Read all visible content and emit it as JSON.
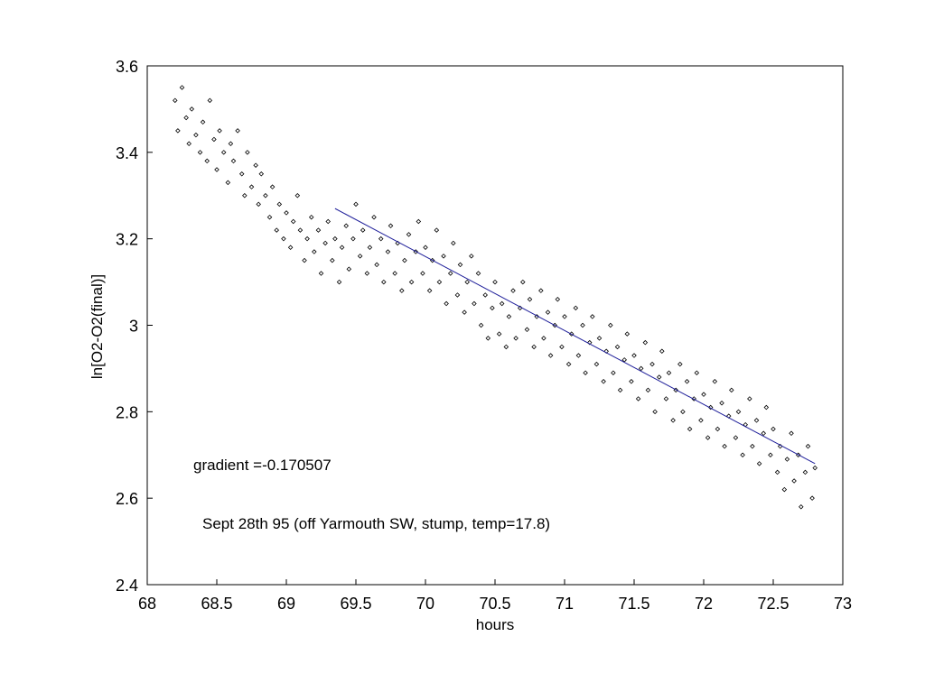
{
  "chart_data": {
    "type": "scatter",
    "title": "",
    "xlabel": "hours",
    "ylabel": "ln[O2-O2(final)]",
    "xlim": [
      68,
      73
    ],
    "ylim": [
      2.4,
      3.6
    ],
    "x_ticks": [
      "68",
      "68.5",
      "69",
      "69.5",
      "70",
      "70.5",
      "71",
      "71.5",
      "72",
      "72.5",
      "73"
    ],
    "y_ticks": [
      "2.4",
      "2.6",
      "2.8",
      "3",
      "3.2",
      "3.4",
      "3.6"
    ],
    "grid": false,
    "series": [
      {
        "points": [
          [
            68.2,
            3.52
          ],
          [
            68.22,
            3.45
          ],
          [
            68.25,
            3.55
          ],
          [
            68.28,
            3.48
          ],
          [
            68.3,
            3.42
          ],
          [
            68.32,
            3.5
          ],
          [
            68.35,
            3.44
          ],
          [
            68.38,
            3.4
          ],
          [
            68.4,
            3.47
          ],
          [
            68.43,
            3.38
          ],
          [
            68.45,
            3.52
          ],
          [
            68.48,
            3.43
          ],
          [
            68.5,
            3.36
          ],
          [
            68.52,
            3.45
          ],
          [
            68.55,
            3.4
          ],
          [
            68.58,
            3.33
          ],
          [
            68.6,
            3.42
          ],
          [
            68.62,
            3.38
          ],
          [
            68.65,
            3.45
          ],
          [
            68.68,
            3.35
          ],
          [
            68.7,
            3.3
          ],
          [
            68.72,
            3.4
          ],
          [
            68.75,
            3.32
          ],
          [
            68.78,
            3.37
          ],
          [
            68.8,
            3.28
          ],
          [
            68.82,
            3.35
          ],
          [
            68.85,
            3.3
          ],
          [
            68.88,
            3.25
          ],
          [
            68.9,
            3.32
          ],
          [
            68.93,
            3.22
          ],
          [
            68.95,
            3.28
          ],
          [
            68.98,
            3.2
          ],
          [
            69.0,
            3.26
          ],
          [
            69.03,
            3.18
          ],
          [
            69.05,
            3.24
          ],
          [
            69.08,
            3.3
          ],
          [
            69.1,
            3.22
          ],
          [
            69.13,
            3.15
          ],
          [
            69.15,
            3.2
          ],
          [
            69.18,
            3.25
          ],
          [
            69.2,
            3.17
          ],
          [
            69.23,
            3.22
          ],
          [
            69.25,
            3.12
          ],
          [
            69.28,
            3.19
          ],
          [
            69.3,
            3.24
          ],
          [
            69.33,
            3.15
          ],
          [
            69.35,
            3.2
          ],
          [
            69.38,
            3.1
          ],
          [
            69.4,
            3.18
          ],
          [
            69.43,
            3.23
          ],
          [
            69.45,
            3.13
          ],
          [
            69.48,
            3.2
          ],
          [
            69.5,
            3.28
          ],
          [
            69.53,
            3.16
          ],
          [
            69.55,
            3.22
          ],
          [
            69.58,
            3.12
          ],
          [
            69.6,
            3.18
          ],
          [
            69.63,
            3.25
          ],
          [
            69.65,
            3.14
          ],
          [
            69.68,
            3.2
          ],
          [
            69.7,
            3.1
          ],
          [
            69.73,
            3.17
          ],
          [
            69.75,
            3.23
          ],
          [
            69.78,
            3.12
          ],
          [
            69.8,
            3.19
          ],
          [
            69.83,
            3.08
          ],
          [
            69.85,
            3.15
          ],
          [
            69.88,
            3.21
          ],
          [
            69.9,
            3.1
          ],
          [
            69.93,
            3.17
          ],
          [
            69.95,
            3.24
          ],
          [
            69.98,
            3.12
          ],
          [
            70.0,
            3.18
          ],
          [
            70.03,
            3.08
          ],
          [
            70.05,
            3.15
          ],
          [
            70.08,
            3.22
          ],
          [
            70.1,
            3.1
          ],
          [
            70.13,
            3.16
          ],
          [
            70.15,
            3.05
          ],
          [
            70.18,
            3.12
          ],
          [
            70.2,
            3.19
          ],
          [
            70.23,
            3.07
          ],
          [
            70.25,
            3.14
          ],
          [
            70.28,
            3.03
          ],
          [
            70.3,
            3.1
          ],
          [
            70.33,
            3.16
          ],
          [
            70.35,
            3.05
          ],
          [
            70.38,
            3.12
          ],
          [
            70.4,
            3.0
          ],
          [
            70.43,
            3.07
          ],
          [
            70.45,
            2.97
          ],
          [
            70.48,
            3.04
          ],
          [
            70.5,
            3.1
          ],
          [
            70.53,
            2.98
          ],
          [
            70.55,
            3.05
          ],
          [
            70.58,
            2.95
          ],
          [
            70.6,
            3.02
          ],
          [
            70.63,
            3.08
          ],
          [
            70.65,
            2.97
          ],
          [
            70.68,
            3.04
          ],
          [
            70.7,
            3.1
          ],
          [
            70.73,
            2.99
          ],
          [
            70.75,
            3.06
          ],
          [
            70.78,
            2.95
          ],
          [
            70.8,
            3.02
          ],
          [
            70.83,
            3.08
          ],
          [
            70.85,
            2.97
          ],
          [
            70.88,
            3.03
          ],
          [
            70.9,
            2.93
          ],
          [
            70.93,
            3.0
          ],
          [
            70.95,
            3.06
          ],
          [
            70.98,
            2.95
          ],
          [
            71.0,
            3.02
          ],
          [
            71.03,
            2.91
          ],
          [
            71.05,
            2.98
          ],
          [
            71.08,
            3.04
          ],
          [
            71.1,
            2.93
          ],
          [
            71.13,
            3.0
          ],
          [
            71.15,
            2.89
          ],
          [
            71.18,
            2.96
          ],
          [
            71.2,
            3.02
          ],
          [
            71.23,
            2.91
          ],
          [
            71.25,
            2.97
          ],
          [
            71.28,
            2.87
          ],
          [
            71.3,
            2.94
          ],
          [
            71.33,
            3.0
          ],
          [
            71.35,
            2.89
          ],
          [
            71.38,
            2.95
          ],
          [
            71.4,
            2.85
          ],
          [
            71.43,
            2.92
          ],
          [
            71.45,
            2.98
          ],
          [
            71.48,
            2.87
          ],
          [
            71.5,
            2.93
          ],
          [
            71.53,
            2.83
          ],
          [
            71.55,
            2.9
          ],
          [
            71.58,
            2.96
          ],
          [
            71.6,
            2.85
          ],
          [
            71.63,
            2.91
          ],
          [
            71.65,
            2.8
          ],
          [
            71.68,
            2.88
          ],
          [
            71.7,
            2.94
          ],
          [
            71.73,
            2.83
          ],
          [
            71.75,
            2.89
          ],
          [
            71.78,
            2.78
          ],
          [
            71.8,
            2.85
          ],
          [
            71.83,
            2.91
          ],
          [
            71.85,
            2.8
          ],
          [
            71.88,
            2.87
          ],
          [
            71.9,
            2.76
          ],
          [
            71.93,
            2.83
          ],
          [
            71.95,
            2.89
          ],
          [
            71.98,
            2.78
          ],
          [
            72.0,
            2.84
          ],
          [
            72.03,
            2.74
          ],
          [
            72.05,
            2.81
          ],
          [
            72.08,
            2.87
          ],
          [
            72.1,
            2.76
          ],
          [
            72.13,
            2.82
          ],
          [
            72.15,
            2.72
          ],
          [
            72.18,
            2.79
          ],
          [
            72.2,
            2.85
          ],
          [
            72.23,
            2.74
          ],
          [
            72.25,
            2.8
          ],
          [
            72.28,
            2.7
          ],
          [
            72.3,
            2.77
          ],
          [
            72.33,
            2.83
          ],
          [
            72.35,
            2.72
          ],
          [
            72.38,
            2.78
          ],
          [
            72.4,
            2.68
          ],
          [
            72.43,
            2.75
          ],
          [
            72.45,
            2.81
          ],
          [
            72.48,
            2.7
          ],
          [
            72.5,
            2.76
          ],
          [
            72.53,
            2.66
          ],
          [
            72.55,
            2.72
          ],
          [
            72.58,
            2.62
          ],
          [
            72.6,
            2.69
          ],
          [
            72.63,
            2.75
          ],
          [
            72.65,
            2.64
          ],
          [
            72.68,
            2.7
          ],
          [
            72.7,
            2.58
          ],
          [
            72.73,
            2.66
          ],
          [
            72.75,
            2.72
          ],
          [
            72.78,
            2.6
          ],
          [
            72.8,
            2.67
          ]
        ]
      }
    ],
    "fit_line": {
      "x": [
        69.35,
        72.8
      ],
      "y": [
        3.27,
        2.68
      ],
      "color": "#1f1f9a"
    },
    "annotations": [
      {
        "name": "gradient-annotation",
        "text": "gradient =-0.170507"
      },
      {
        "name": "caption-annotation",
        "text": "Sept 28th 95 (off Yarmouth SW, stump, temp=17.8)"
      }
    ]
  }
}
